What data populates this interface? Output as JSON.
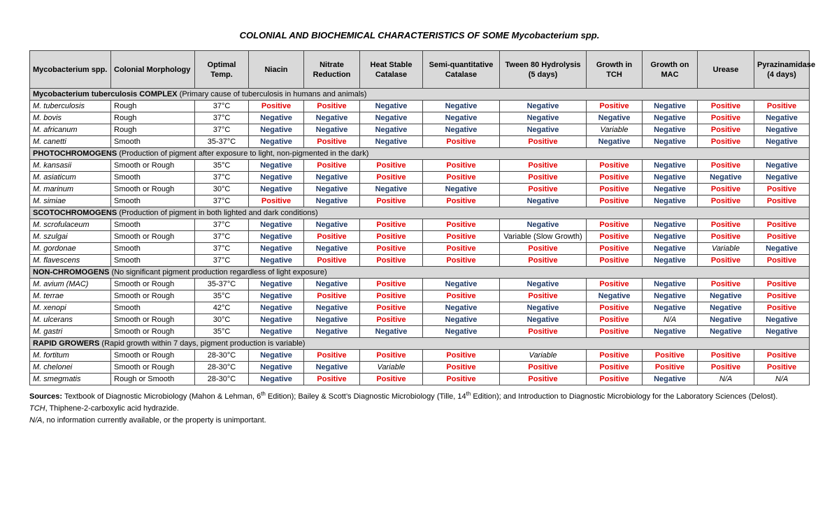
{
  "title": "COLONIAL AND BIOCHEMICAL CHARACTERISTICS OF SOME Mycobacterium spp.",
  "table": {
    "headers": [
      "Mycobacterium spp.",
      "Colonial Morphology",
      "Optimal Temp.",
      "Niacin",
      "Nitrate Reduction",
      "Heat Stable Catalase",
      "Semi-quantitative Catalase",
      "Tween 80 Hydrolysis (5 days)",
      "Growth in TCH",
      "Growth on MAC",
      "Urease",
      "Pyrazinamidase (4 days)"
    ],
    "groups": [
      {
        "name": "Mycobacterium tuberculosis COMPLEX",
        "note": "(Primary cause of tuberculosis in humans and animals)",
        "rows": [
          [
            "M. tuberculosis",
            "Rough",
            "37°C",
            "Positive",
            "Positive",
            "Negative",
            "Negative",
            "Negative",
            "Positive",
            "Negative",
            "Positive",
            "Positive"
          ],
          [
            "M. bovis",
            "Rough",
            "37°C",
            "Negative",
            "Negative",
            "Negative",
            "Negative",
            "Negative",
            "Negative",
            "Negative",
            "Positive",
            "Negative"
          ],
          [
            "M. africanum",
            "Rough",
            "37°C",
            "Negative",
            "Negative",
            "Negative",
            "Negative",
            "Negative",
            "Variable",
            "Negative",
            "Positive",
            "Negative"
          ],
          [
            "M. canetti",
            "Smooth",
            "35-37°C",
            "Negative",
            "Positive",
            "Negative",
            "Positive",
            "Positive",
            "Negative",
            "Negative",
            "Positive",
            "Negative"
          ]
        ]
      },
      {
        "name": "PHOTOCHROMOGENS",
        "note": "(Production of pigment after exposure to light, non-pigmented in the dark)",
        "rows": [
          [
            "M. kansasii",
            "Smooth or Rough",
            "35°C",
            "Negative",
            "Positive",
            "Positive",
            "Positive",
            "Positive",
            "Positive",
            "Negative",
            "Positive",
            "Negative"
          ],
          [
            "M. asiaticum",
            "Smooth",
            "37°C",
            "Negative",
            "Negative",
            "Positive",
            "Positive",
            "Positive",
            "Positive",
            "Negative",
            "Negative",
            "Negative"
          ],
          [
            "M. marinum",
            "Smooth or Rough",
            "30°C",
            "Negative",
            "Negative",
            "Negative",
            "Negative",
            "Positive",
            "Positive",
            "Negative",
            "Positive",
            "Positive"
          ],
          [
            "M. simiae",
            "Smooth",
            "37°C",
            "Positive",
            "Negative",
            "Positive",
            "Positive",
            "Negative",
            "Positive",
            "Negative",
            "Positive",
            "Positive"
          ]
        ]
      },
      {
        "name": "SCOTOCHROMOGENS",
        "note": "(Production of pigment in both lighted and dark conditions)",
        "rows": [
          [
            "M. scrofulaceum",
            "Smooth",
            "37°C",
            "Negative",
            "Negative",
            "Positive",
            "Positive",
            "Negative",
            "Positive",
            "Negative",
            "Positive",
            "Positive"
          ],
          [
            "M. szulgai",
            "Smooth or Rough",
            "37°C",
            "Negative",
            "Positive",
            "Positive",
            "Positive",
            "Variable (Slow Growth)",
            "Positive",
            "Negative",
            "Positive",
            "Positive"
          ],
          [
            "M. gordonae",
            "Smooth",
            "37°C",
            "Negative",
            "Negative",
            "Positive",
            "Positive",
            "Positive",
            "Positive",
            "Negative",
            "Variable",
            "Negative"
          ],
          [
            "M. flavescens",
            "Smooth",
            "37°C",
            "Negative",
            "Positive",
            "Positive",
            "Positive",
            "Positive",
            "Positive",
            "Negative",
            "Positive",
            "Positive"
          ]
        ]
      },
      {
        "name": "NON-CHROMOGENS",
        "note": "(No significant pigment production regardless of light exposure)",
        "rows": [
          [
            "M. avium (MAC)",
            "Smooth or Rough",
            "35-37°C",
            "Negative",
            "Negative",
            "Positive",
            "Negative",
            "Negative",
            "Positive",
            "Negative",
            "Positive",
            "Positive"
          ],
          [
            "M. terrae",
            "Smooth or Rough",
            "35°C",
            "Negative",
            "Positive",
            "Positive",
            "Positive",
            "Positive",
            "Negative",
            "Negative",
            "Negative",
            "Positive"
          ],
          [
            "M. xenopi",
            "Smooth",
            "42°C",
            "Negative",
            "Negative",
            "Positive",
            "Negative",
            "Negative",
            "Positive",
            "Negative",
            "Negative",
            "Positive"
          ],
          [
            "M. ulcerans",
            "Smooth or Rough",
            "30°C",
            "Negative",
            "Negative",
            "Positive",
            "Negative",
            "Negative",
            "Positive",
            "N/A",
            "Negative",
            "Negative"
          ],
          [
            "M. gastri",
            "Smooth or Rough",
            "35°C",
            "Negative",
            "Negative",
            "Negative",
            "Negative",
            "Positive",
            "Positive",
            "Negative",
            "Negative",
            "Negative"
          ]
        ]
      },
      {
        "name": "RAPID GROWERS",
        "note": "(Rapid growth within 7 days, pigment production is variable)",
        "rows": [
          [
            "M. fortitum",
            "Smooth or Rough",
            "28-30°C",
            "Negative",
            "Positive",
            "Positive",
            "Positive",
            "Variable",
            "Positive",
            "Positive",
            "Positive",
            "Positive"
          ],
          [
            "M. chelonei",
            "Smooth or Rough",
            "28-30°C",
            "Negative",
            "Negative",
            "Variable",
            "Positive",
            "Positive",
            "Positive",
            "Positive",
            "Positive",
            "Positive"
          ],
          [
            "M. smegmatis",
            "Rough or Smooth",
            "28-30°C",
            "Negative",
            "Positive",
            "Positive",
            "Positive",
            "Positive",
            "Positive",
            "Negative",
            "N/A",
            "N/A"
          ]
        ]
      }
    ]
  },
  "footnotes": {
    "sources_label": "Sources:",
    "sources": [
      "Textbook of Diagnostic Microbiology (Mahon & Lehman, 6",
      "th",
      " Edition); Bailey & Scott’s Diagnostic Microbiology (Tille, 14",
      "th",
      " Edition); and Introduction to Diagnostic Microbiology for the Laboratory Sciences (Delost)."
    ],
    "abbreviations": [
      {
        "term": "TCH",
        "text": ", Thiphene-2-carboxylic acid hydrazide."
      },
      {
        "term": "N/A",
        "text": ", no information currently available, or the property is unimportant."
      }
    ]
  }
}
